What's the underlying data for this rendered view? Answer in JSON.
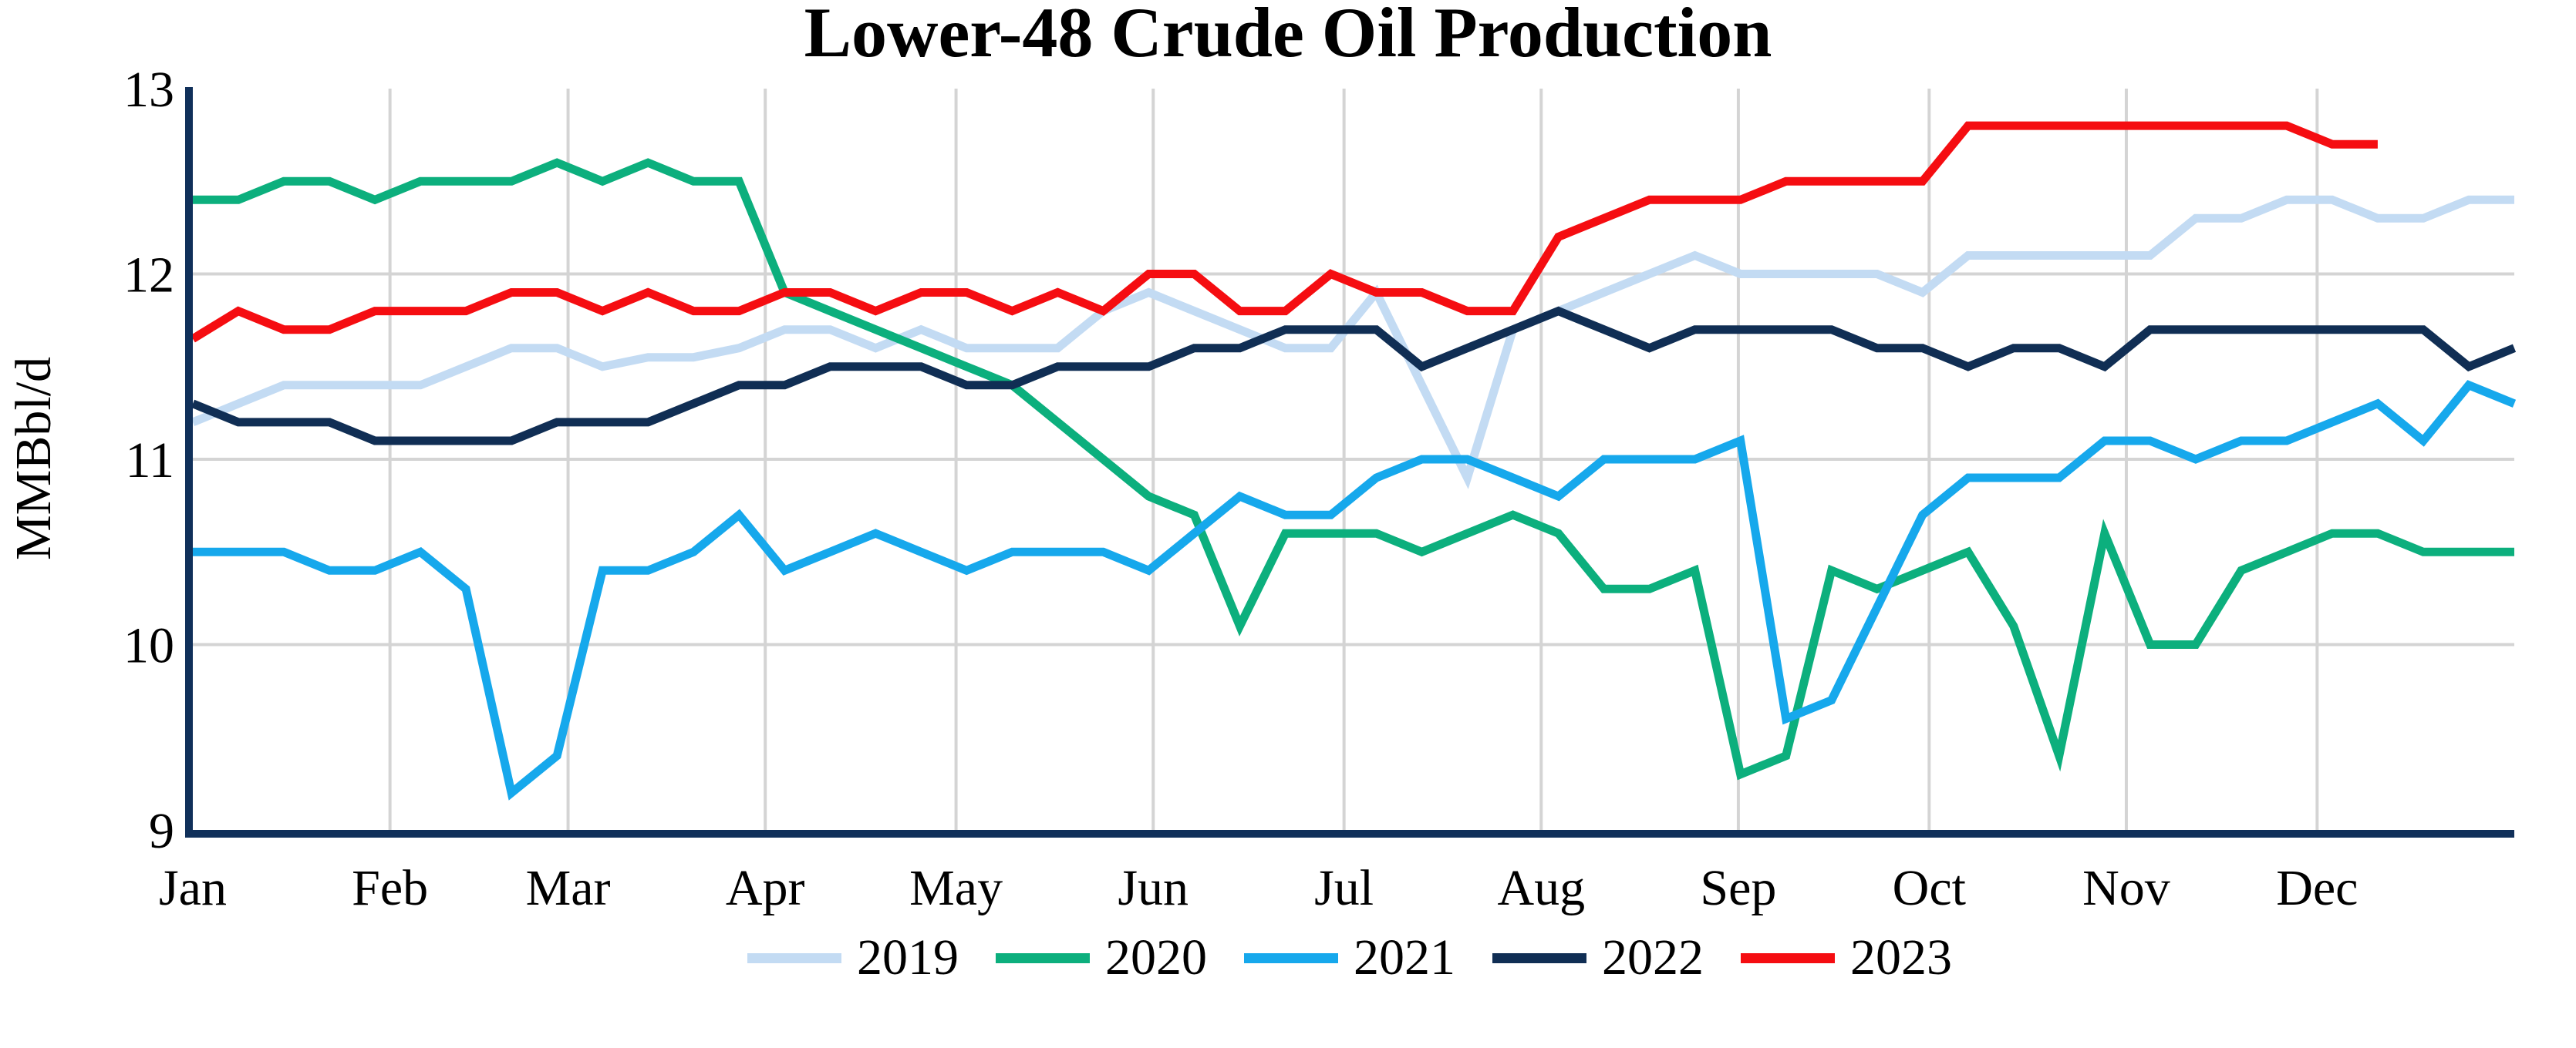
{
  "chart_data": {
    "type": "line",
    "title": "Lower-48 Crude Oil Production",
    "ylabel": "MMBbl/d",
    "background_color": "#FFFFFF",
    "axis_color": "#10305A",
    "grid_color": "#D4D4D4",
    "text_color": "#000000",
    "grid": true,
    "legend_position": "bottom-center",
    "x_axis": {
      "tick_labels": [
        "Jan",
        "Feb",
        "Mar",
        "Apr",
        "May",
        "Jun",
        "Jul",
        "Aug",
        "Sep",
        "Oct",
        "Nov",
        "Dec"
      ],
      "month_start_days": [
        0,
        31,
        59,
        90,
        120,
        151,
        181,
        212,
        243,
        273,
        304,
        334
      ],
      "days_in_year": 365,
      "weeks": 52
    },
    "y_axis": {
      "min": 9,
      "max": 13,
      "ticks": [
        9,
        10,
        11,
        12,
        13
      ]
    },
    "series": [
      {
        "name": "2019",
        "color": "#C3DBF3",
        "values": [
          11.2,
          11.3,
          11.4,
          11.4,
          11.4,
          11.4,
          11.5,
          11.6,
          11.6,
          11.5,
          11.55,
          11.55,
          11.6,
          11.7,
          11.7,
          11.6,
          11.7,
          11.6,
          11.6,
          11.6,
          11.8,
          11.9,
          11.8,
          11.7,
          11.6,
          11.6,
          11.9,
          11.4,
          10.9,
          11.7,
          11.8,
          11.9,
          12.0,
          12.1,
          12.0,
          12.0,
          12.0,
          12.0,
          11.9,
          12.1,
          12.1,
          12.1,
          12.1,
          12.1,
          12.3,
          12.3,
          12.4,
          12.4,
          12.3,
          12.3,
          12.4,
          12.4
        ]
      },
      {
        "name": "2020",
        "color": "#0CAF7D",
        "values": [
          12.4,
          12.4,
          12.5,
          12.5,
          12.4,
          12.5,
          12.5,
          12.5,
          12.6,
          12.5,
          12.6,
          12.5,
          12.5,
          11.9,
          11.8,
          11.7,
          11.6,
          11.5,
          11.4,
          11.2,
          11.0,
          10.8,
          10.7,
          10.1,
          10.6,
          10.6,
          10.6,
          10.5,
          10.6,
          10.7,
          10.6,
          10.3,
          10.3,
          10.4,
          9.3,
          9.4,
          10.4,
          10.3,
          10.4,
          10.5,
          10.1,
          9.4,
          10.6,
          10.0,
          10.0,
          10.4,
          10.5,
          10.6,
          10.6,
          10.5,
          10.5,
          10.5
        ]
      },
      {
        "name": "2021",
        "color": "#16A8EC",
        "values": [
          10.5,
          10.5,
          10.5,
          10.4,
          10.4,
          10.5,
          10.3,
          9.2,
          9.4,
          10.4,
          10.4,
          10.5,
          10.7,
          10.4,
          10.5,
          10.6,
          10.5,
          10.4,
          10.5,
          10.5,
          10.5,
          10.4,
          10.6,
          10.8,
          10.7,
          10.7,
          10.9,
          11.0,
          11.0,
          10.9,
          10.8,
          11.0,
          11.0,
          11.0,
          11.1,
          9.6,
          9.7,
          10.2,
          10.7,
          10.9,
          10.9,
          10.9,
          11.1,
          11.1,
          11.0,
          11.1,
          11.1,
          11.2,
          11.3,
          11.1,
          11.4,
          11.3
        ]
      },
      {
        "name": "2022",
        "color": "#102E54",
        "values": [
          11.3,
          11.2,
          11.2,
          11.2,
          11.1,
          11.1,
          11.1,
          11.1,
          11.2,
          11.2,
          11.2,
          11.3,
          11.4,
          11.4,
          11.5,
          11.5,
          11.5,
          11.4,
          11.4,
          11.5,
          11.5,
          11.5,
          11.6,
          11.6,
          11.7,
          11.7,
          11.7,
          11.5,
          11.6,
          11.7,
          11.8,
          11.7,
          11.6,
          11.7,
          11.7,
          11.7,
          11.7,
          11.6,
          11.6,
          11.5,
          11.6,
          11.6,
          11.5,
          11.7,
          11.7,
          11.7,
          11.7,
          11.7,
          11.7,
          11.7,
          11.5,
          11.6
        ]
      },
      {
        "name": "2023",
        "color": "#F50D11",
        "values": [
          11.65,
          11.8,
          11.7,
          11.7,
          11.8,
          11.8,
          11.8,
          11.9,
          11.9,
          11.8,
          11.9,
          11.8,
          11.8,
          11.9,
          11.9,
          11.8,
          11.9,
          11.9,
          11.8,
          11.9,
          11.8,
          12.0,
          12.0,
          11.8,
          11.8,
          12.0,
          11.9,
          11.9,
          11.8,
          11.8,
          12.2,
          12.3,
          12.4,
          12.4,
          12.4,
          12.5,
          12.5,
          12.5,
          12.5,
          12.8,
          12.8,
          12.8,
          12.8,
          12.8,
          12.8,
          12.8,
          12.8,
          12.7,
          12.7
        ]
      }
    ]
  }
}
